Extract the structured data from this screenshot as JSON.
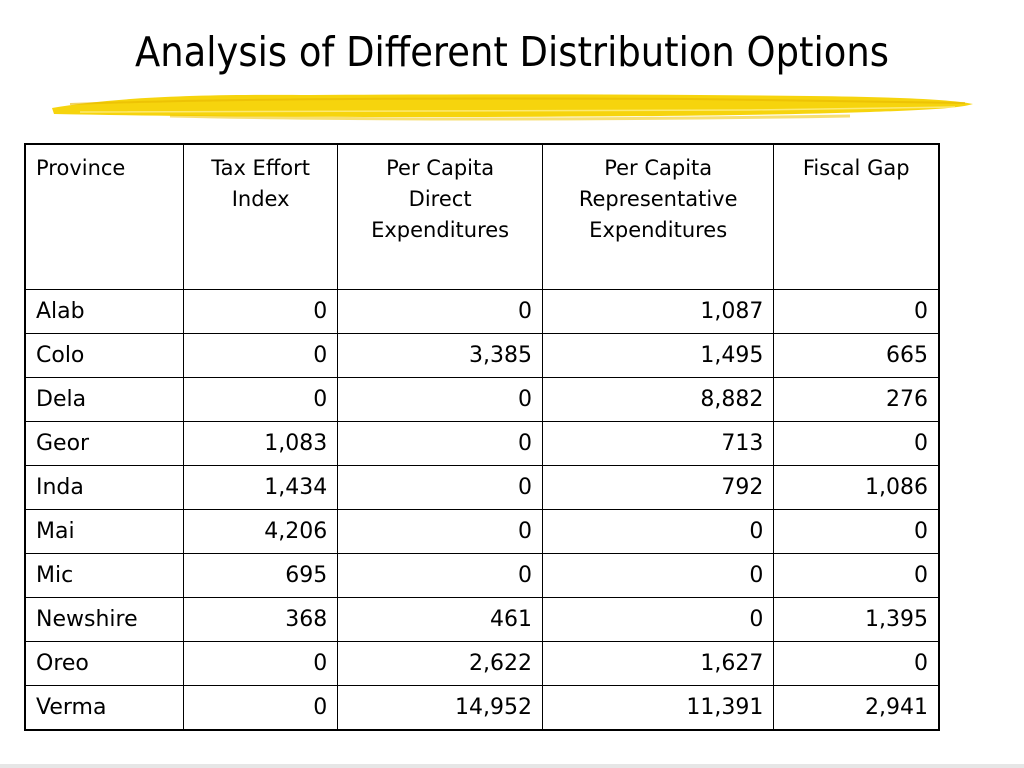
{
  "title": "Analysis of Different Distribution Options",
  "accent_color": "#f5d200",
  "table": {
    "headers": [
      [
        "Province"
      ],
      [
        "Tax Effort",
        "Index"
      ],
      [
        "Per Capita",
        "Direct",
        "Expenditures"
      ],
      [
        "Per Capita",
        "Representative",
        "Expenditures"
      ],
      [
        "Fiscal Gap"
      ]
    ],
    "rows": [
      [
        "Alab",
        "0",
        "0",
        "1,087",
        "0"
      ],
      [
        "Colo",
        "0",
        "3,385",
        "1,495",
        "665"
      ],
      [
        "Dela",
        "0",
        "0",
        "8,882",
        "276"
      ],
      [
        "Geor",
        "1,083",
        "0",
        "713",
        "0"
      ],
      [
        "Inda",
        "1,434",
        "0",
        "792",
        "1,086"
      ],
      [
        "Mai",
        "4,206",
        "0",
        "0",
        "0"
      ],
      [
        "Mic",
        "695",
        "0",
        "0",
        "0"
      ],
      [
        "Newshire",
        "368",
        "461",
        "0",
        "1,395"
      ],
      [
        "Oreo",
        "0",
        "2,622",
        "1,627",
        "0"
      ],
      [
        "Verma",
        "0",
        "14,952",
        "11,391",
        "2,941"
      ]
    ]
  }
}
